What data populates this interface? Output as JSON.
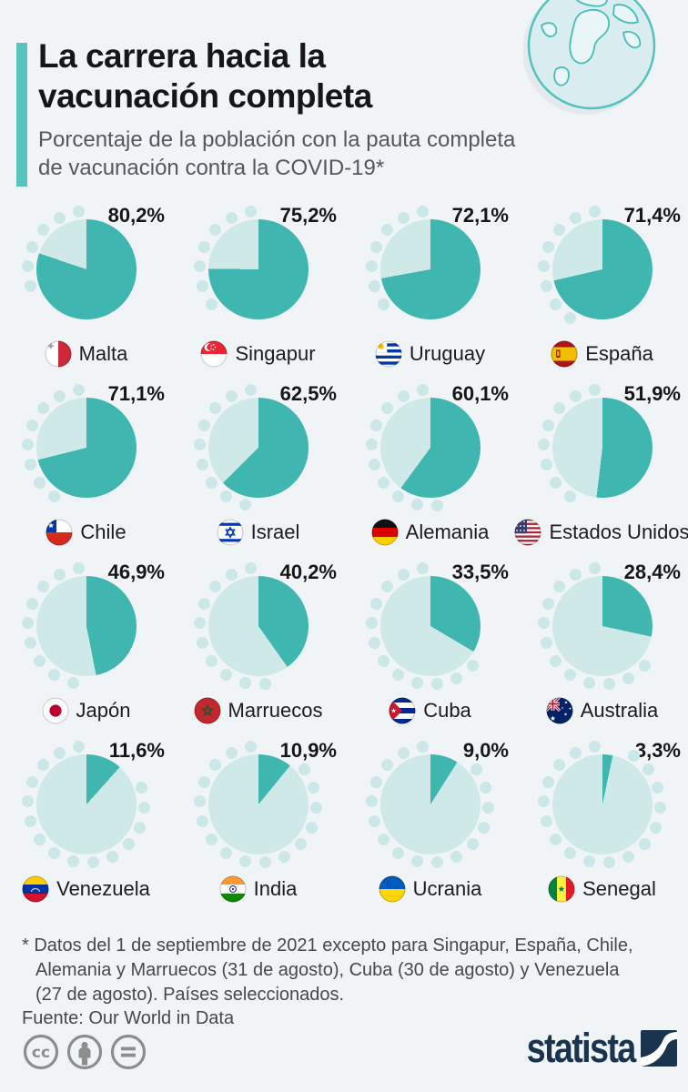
{
  "header": {
    "title_lines": [
      "La carrera hacia la",
      "vacunación completa"
    ],
    "subtitle_lines": [
      "Porcentaje de la población con la pauta completa",
      "de vacunación contra la COVID-19*"
    ],
    "globe_icon": "globe-icon"
  },
  "colors": {
    "background": "#f0f4f7",
    "pie_filled": "#3fb6af",
    "pie_unfilled": "#cfe9e9",
    "dot_teal": "#cbe7e8",
    "accent_bar": "#59c3bd",
    "subtitle_gray": "#54585c",
    "footnote_gray": "#46484a",
    "license_gray": "#8d8d8d",
    "statista_navy": "#1a3450"
  },
  "chart_data": {
    "type": "pie",
    "unit": "%",
    "title": "La carrera hacia la vacunación completa",
    "subtitle": "Porcentaje de la población con la pauta completa de vacunación contra la COVID-19*",
    "layout": "4x4 grid of donut-free pie charts, filled clockwise from top; decorative dots ring the unvaccinated arc",
    "series": [
      {
        "country": "Malta",
        "value": 80.2,
        "label": "80,2%",
        "flag": "malta"
      },
      {
        "country": "Singapur",
        "value": 75.2,
        "label": "75,2%",
        "flag": "singapur"
      },
      {
        "country": "Uruguay",
        "value": 72.1,
        "label": "72,1%",
        "flag": "uruguay"
      },
      {
        "country": "España",
        "value": 71.4,
        "label": "71,4%",
        "flag": "espana"
      },
      {
        "country": "Chile",
        "value": 71.1,
        "label": "71,1%",
        "flag": "chile"
      },
      {
        "country": "Israel",
        "value": 62.5,
        "label": "62,5%",
        "flag": "israel"
      },
      {
        "country": "Alemania",
        "value": 60.1,
        "label": "60,1%",
        "flag": "alemania"
      },
      {
        "country": "Estados Unidos",
        "value": 51.9,
        "label": "51,9%",
        "flag": "eeuu"
      },
      {
        "country": "Japón",
        "value": 46.9,
        "label": "46,9%",
        "flag": "japon"
      },
      {
        "country": "Marruecos",
        "value": 40.2,
        "label": "40,2%",
        "flag": "marruecos"
      },
      {
        "country": "Cuba",
        "value": 33.5,
        "label": "33,5%",
        "flag": "cuba"
      },
      {
        "country": "Australia",
        "value": 28.4,
        "label": "28,4%",
        "flag": "australia"
      },
      {
        "country": "Venezuela",
        "value": 11.6,
        "label": "11,6%",
        "flag": "venezuela"
      },
      {
        "country": "India",
        "value": 10.9,
        "label": "10,9%",
        "flag": "india"
      },
      {
        "country": "Ucrania",
        "value": 9.0,
        "label": "9,0%",
        "flag": "ucrania"
      },
      {
        "country": "Senegal",
        "value": 3.3,
        "label": "3,3%",
        "flag": "senegal"
      }
    ]
  },
  "footer": {
    "note_lines": [
      "* Datos del 1 de septiembre de 2021 excepto para Singapur, España, Chile,",
      "Alemania y Marruecos (31 de agosto), Cuba (30 de agosto) y Venezuela",
      "(27 de agosto). Países seleccionados."
    ],
    "source": "Fuente: Our World in Data",
    "license_icons": [
      "cc-icon",
      "attribution-icon",
      "no-derivatives-icon"
    ],
    "brand": "statista"
  }
}
